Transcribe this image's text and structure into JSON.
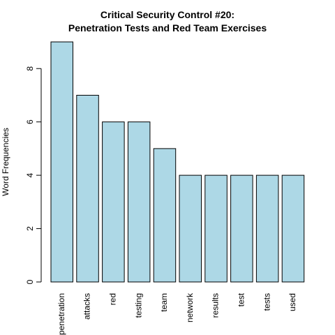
{
  "chart_data": {
    "type": "bar",
    "title": [
      "Critical Security Control #20:",
      "Penetration Tests and Red Team Exercises"
    ],
    "xlabel": "",
    "ylabel": "Word Frequencies",
    "categories": [
      "penetration",
      "attacks",
      "red",
      "testing",
      "team",
      "network",
      "results",
      "test",
      "tests",
      "used"
    ],
    "values": [
      9,
      7,
      6,
      6,
      5,
      4,
      4,
      4,
      4,
      4
    ],
    "yticks": [
      0,
      2,
      4,
      6,
      8
    ],
    "ylim": [
      0,
      9
    ],
    "bar_color": "#ADD8E6",
    "grid": false,
    "legend": "none"
  }
}
